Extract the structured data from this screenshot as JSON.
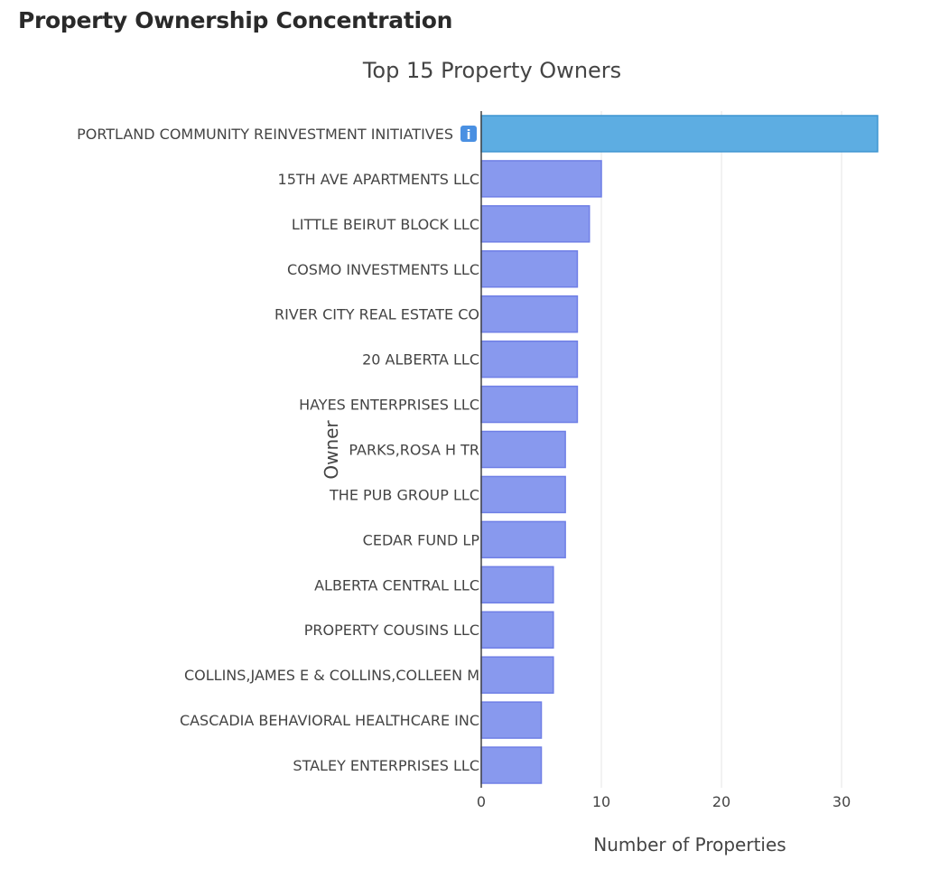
{
  "page": {
    "title": "Property Ownership Concentration"
  },
  "chart_data": {
    "type": "bar",
    "orientation": "horizontal",
    "title": "Top 15 Property Owners",
    "xlabel": "Number of Properties",
    "ylabel": "Owner",
    "xlim": [
      0,
      33
    ],
    "xticks": [
      0,
      10,
      20,
      30
    ],
    "grid": true,
    "categories": [
      "PORTLAND COMMUNITY REINVESTMENT INITIATIVES",
      "15TH AVE APARTMENTS LLC",
      "LITTLE BEIRUT BLOCK LLC",
      "COSMO INVESTMENTS LLC",
      "RIVER CITY REAL ESTATE CO",
      "20 ALBERTA LLC",
      "HAYES ENTERPRISES LLC",
      "PARKS,ROSA H TR",
      "THE PUB GROUP LLC",
      "CEDAR FUND LP",
      "ALBERTA CENTRAL LLC",
      "PROPERTY COUSINS LLC",
      "COLLINS,JAMES E & COLLINS,COLLEEN M",
      "CASCADIA BEHAVIORAL HEALTHCARE INC",
      "STALEY ENTERPRISES LLC"
    ],
    "values": [
      33,
      10,
      9,
      8,
      8,
      8,
      8,
      7,
      7,
      7,
      6,
      6,
      6,
      5,
      5
    ],
    "highlight_index": 0,
    "info_icon_index": 0,
    "colors": {
      "highlight": "#5dade2",
      "highlight_stroke": "#3f95d1",
      "bar": "#8899ee",
      "bar_stroke": "#6f7fe6",
      "grid": "#e5e5e5",
      "axis": "#444444",
      "info_icon_bg": "#4a90e2"
    }
  }
}
